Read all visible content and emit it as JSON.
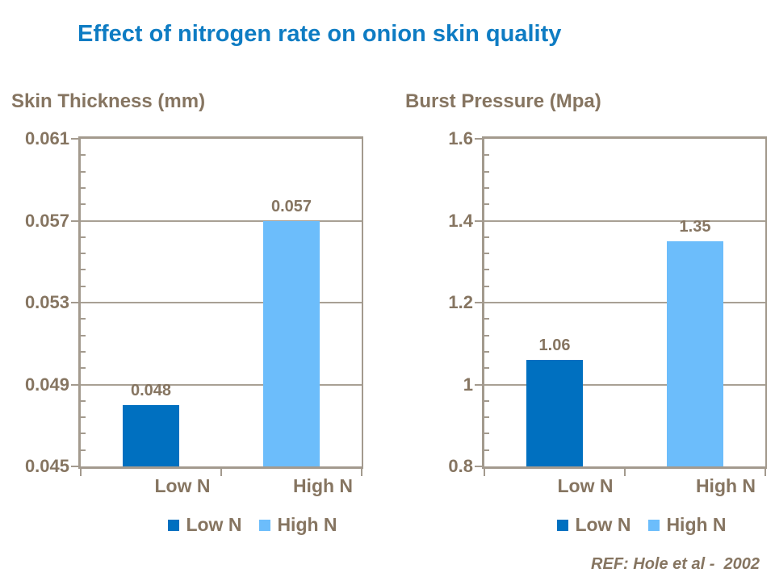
{
  "page": {
    "title": "Effect of nitrogen rate on onion skin quality",
    "reference": "REF: Hole et al -  2002"
  },
  "colors": {
    "title": "#0e7cc3",
    "text": "#867561",
    "axis": "#a39a8e",
    "grid": "#a8a094",
    "series": [
      "#0070c0",
      "#6cbdfb"
    ]
  },
  "chart_data": [
    {
      "type": "bar",
      "title": "Skin Thickness (mm)",
      "categories": [
        "Low N",
        "High N"
      ],
      "values": [
        0.048,
        0.057
      ],
      "data_labels": [
        "0.048",
        "0.057"
      ],
      "legend": [
        "Low N",
        "High N"
      ],
      "legend_position": "bottom",
      "ylim": [
        0.045,
        0.061
      ],
      "yticks": [
        0.061,
        0.057,
        0.053,
        0.049,
        0.045
      ],
      "ytick_labels": [
        "0.061",
        "0.057",
        "0.053",
        "0.049",
        "0.045"
      ],
      "minor_divisions_per_major": 5,
      "grid": true,
      "xlabel": "",
      "ylabel": ""
    },
    {
      "type": "bar",
      "title": "Burst Pressure (Mpa)",
      "categories": [
        "Low N",
        "High N"
      ],
      "values": [
        1.06,
        1.35
      ],
      "data_labels": [
        "1.06",
        "1.35"
      ],
      "legend": [
        "Low N",
        "High N"
      ],
      "legend_position": "bottom",
      "ylim": [
        0.8,
        1.6
      ],
      "yticks": [
        1.6,
        1.4,
        1.2,
        1.0,
        0.8
      ],
      "ytick_labels": [
        "1.6",
        "1.4",
        "1.2",
        "1",
        "0.8"
      ],
      "minor_divisions_per_major": 5,
      "grid": true,
      "xlabel": "",
      "ylabel": ""
    }
  ]
}
